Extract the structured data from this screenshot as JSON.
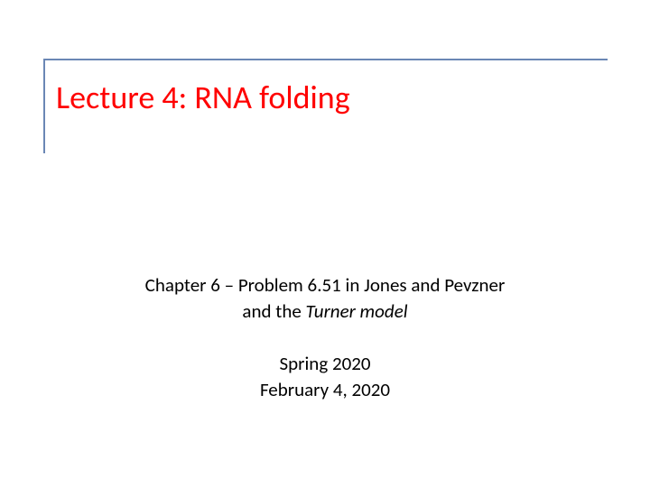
{
  "slide": {
    "title": "Lecture 4: RNA folding",
    "title_color": "#ff0000",
    "title_fontsize": 36,
    "border_color": "#6b87b5",
    "body_line1_prefix": "Chapter 6 – Problem 6.51 in Jones and Pevzner",
    "body_line2_prefix": "and the ",
    "body_line2_italic": "Turner model",
    "body_line3": "Spring 2020",
    "body_line4": "February 4, 2020",
    "body_color": "#000000",
    "body_fontsize": 21,
    "background_color": "#ffffff"
  }
}
